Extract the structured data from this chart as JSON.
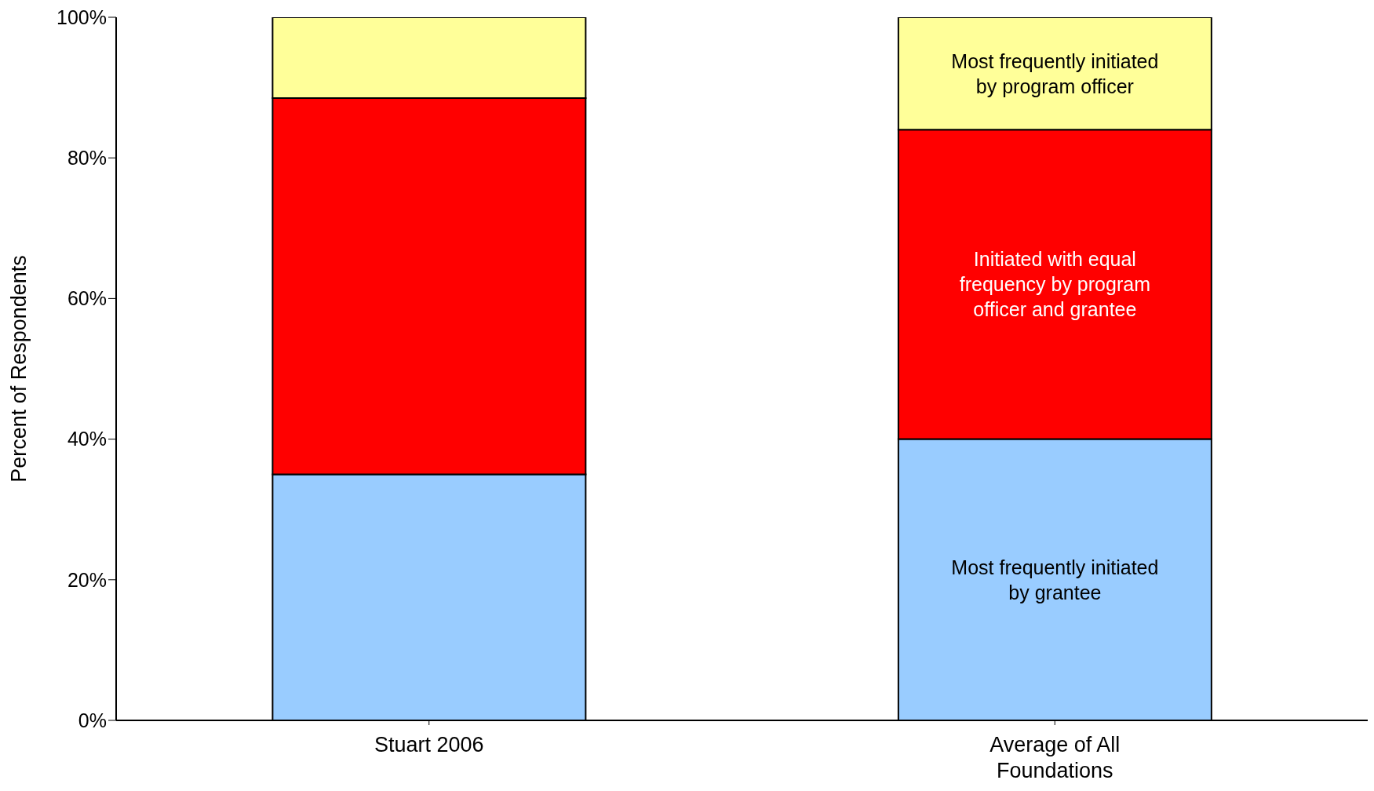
{
  "chart_data": {
    "type": "bar",
    "stacked": true,
    "ylabel": "Percent of Respondents",
    "categories": [
      "Stuart 2006",
      "Average of All Foundations"
    ],
    "series": [
      {
        "name": "Most frequently initiated by grantee",
        "color": "#99ccff",
        "values": [
          35,
          40
        ]
      },
      {
        "name": "Initiated with equal frequency by program officer and grantee",
        "color": "#ff0000",
        "values": [
          53.5,
          44
        ]
      },
      {
        "name": "Most frequently initiated by program officer",
        "color": "#ffff99",
        "values": [
          11.5,
          16
        ]
      }
    ],
    "ylim": [
      0,
      100
    ],
    "yticks": [
      {
        "value": 0,
        "label": "0%"
      },
      {
        "value": 20,
        "label": "20%"
      },
      {
        "value": 40,
        "label": "40%"
      },
      {
        "value": 60,
        "label": "60%"
      },
      {
        "value": 80,
        "label": "80%"
      },
      {
        "value": 100,
        "label": "100%"
      }
    ],
    "grid": false,
    "legend": false
  }
}
